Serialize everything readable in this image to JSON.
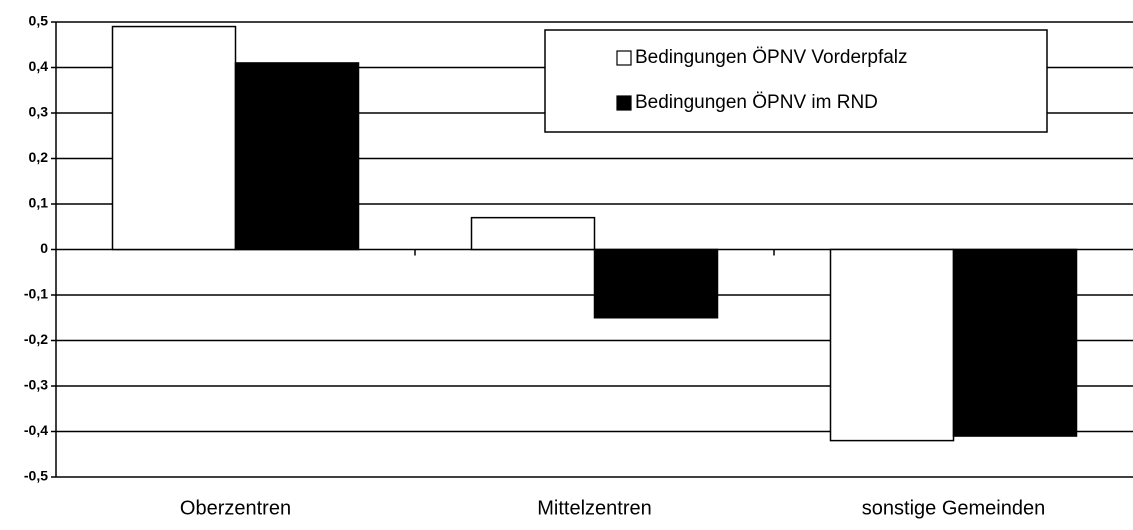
{
  "chart_data": {
    "type": "bar",
    "categories": [
      "Oberzentren",
      "Mittelzentren",
      "sonstige Gemeinden"
    ],
    "series": [
      {
        "name": "Bedingungen ÖPNV Vorderpfalz",
        "color": "#ffffff",
        "values": [
          0.49,
          0.07,
          -0.42
        ]
      },
      {
        "name": "Bedingungen ÖPNV im RND",
        "color": "#000000",
        "values": [
          0.41,
          -0.15,
          -0.41
        ]
      }
    ],
    "ylim": [
      -0.5,
      0.5
    ],
    "yticks": [
      {
        "value": 0.5,
        "label": "0,5"
      },
      {
        "value": 0.4,
        "label": "0,4"
      },
      {
        "value": 0.3,
        "label": "0,3"
      },
      {
        "value": 0.2,
        "label": "0,2"
      },
      {
        "value": 0.1,
        "label": "0,1"
      },
      0,
      {
        "value": -0.1,
        "label": "-0,1"
      },
      {
        "value": -0.2,
        "label": "-0,2"
      },
      {
        "value": -0.3,
        "label": "-0,3"
      },
      {
        "value": -0.4,
        "label": "-0,4"
      },
      {
        "value": -0.5,
        "label": "-0,5"
      }
    ],
    "grid": true,
    "legend": "upper right"
  }
}
